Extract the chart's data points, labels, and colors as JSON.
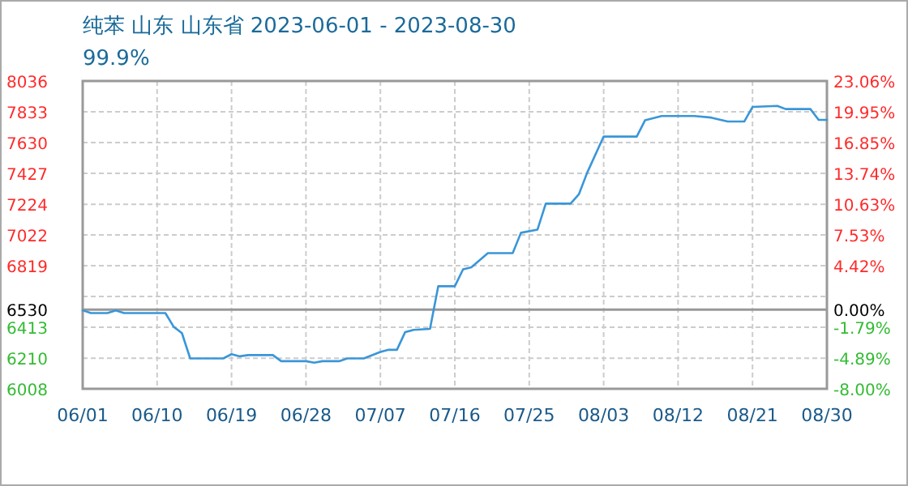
{
  "chart_data": {
    "type": "line",
    "title": "纯苯 山东 山东省 2023-06-01 - 2023-08-30",
    "subtitle": "99.9%",
    "x": [
      "2023-06-01",
      "2023-06-02",
      "2023-06-04",
      "2023-06-05",
      "2023-06-06",
      "2023-06-11",
      "2023-06-12",
      "2023-06-13",
      "2023-06-14",
      "2023-06-18",
      "2023-06-19",
      "2023-06-20",
      "2023-06-21",
      "2023-06-24",
      "2023-06-25",
      "2023-06-28",
      "2023-06-29",
      "2023-06-30",
      "2023-07-02",
      "2023-07-03",
      "2023-07-05",
      "2023-07-07",
      "2023-07-08",
      "2023-07-09",
      "2023-07-10",
      "2023-07-11",
      "2023-07-13",
      "2023-07-14",
      "2023-07-16",
      "2023-07-17",
      "2023-07-18",
      "2023-07-20",
      "2023-07-23",
      "2023-07-24",
      "2023-07-26",
      "2023-07-27",
      "2023-07-30",
      "2023-07-31",
      "2023-08-01",
      "2023-08-03",
      "2023-08-07",
      "2023-08-08",
      "2023-08-10",
      "2023-08-14",
      "2023-08-16",
      "2023-08-18",
      "2023-08-20",
      "2023-08-21",
      "2023-08-24",
      "2023-08-25",
      "2023-08-28",
      "2023-08-29",
      "2023-08-30"
    ],
    "series": [
      {
        "color": "#3a96d8",
        "values": [
          6525,
          6507,
          6507,
          6524,
          6507,
          6507,
          6417,
          6375,
          6208,
          6208,
          6236,
          6222,
          6230,
          6230,
          6190,
          6190,
          6180,
          6190,
          6190,
          6208,
          6208,
          6251,
          6265,
          6265,
          6382,
          6396,
          6403,
          6684,
          6684,
          6795,
          6809,
          6902,
          6902,
          7036,
          7057,
          7228,
          7228,
          7289,
          7431,
          7670,
          7670,
          7777,
          7805,
          7805,
          7795,
          7769,
          7769,
          7865,
          7872,
          7851,
          7851,
          7780,
          7780
        ]
      }
    ],
    "xlim": [
      "2023-06-01",
      "2023-08-30"
    ],
    "xticks": [
      {
        "value": "2023-06-01",
        "label": "06/01"
      },
      {
        "value": "2023-06-10",
        "label": "06/10"
      },
      {
        "value": "2023-06-19",
        "label": "06/19"
      },
      {
        "value": "2023-06-28",
        "label": "06/28"
      },
      {
        "value": "2023-07-07",
        "label": "07/07"
      },
      {
        "value": "2023-07-16",
        "label": "07/16"
      },
      {
        "value": "2023-07-25",
        "label": "07/25"
      },
      {
        "value": "2023-08-03",
        "label": "08/03"
      },
      {
        "value": "2023-08-12",
        "label": "08/12"
      },
      {
        "value": "2023-08-21",
        "label": "08/21"
      },
      {
        "value": "2023-08-30",
        "label": "08/30"
      }
    ],
    "ylim": [
      6008,
      8036
    ],
    "yticks": [
      8036,
      7833,
      7630,
      7427,
      7224,
      7022,
      6819,
      {
        "value": 6616,
        "label": null
      },
      6530,
      6413,
      6210,
      6008
    ],
    "y2lim": [
      -8.0,
      23.06
    ],
    "y2ticks": [
      {
        "value": 23.06,
        "label": "23.06%"
      },
      {
        "value": 19.95,
        "label": "19.95%"
      },
      {
        "value": 16.85,
        "label": "16.85%"
      },
      {
        "value": 13.74,
        "label": "13.74%"
      },
      {
        "value": 10.63,
        "label": "10.63%"
      },
      {
        "value": 7.53,
        "label": "7.53%"
      },
      {
        "value": 4.42,
        "label": "4.42%"
      },
      {
        "value": 1.32,
        "label": null
      },
      {
        "value": 0,
        "label": "0.00%"
      },
      {
        "value": -1.79,
        "label": "-1.79%"
      },
      {
        "value": -4.89,
        "label": "-4.89%"
      },
      {
        "value": -8.0,
        "label": "-8.00%"
      }
    ],
    "ref_lines": [
      {
        "axis": "y",
        "value": 6530,
        "color": "#999999"
      }
    ],
    "grid": true,
    "marker": "none",
    "line_style": "solid"
  }
}
